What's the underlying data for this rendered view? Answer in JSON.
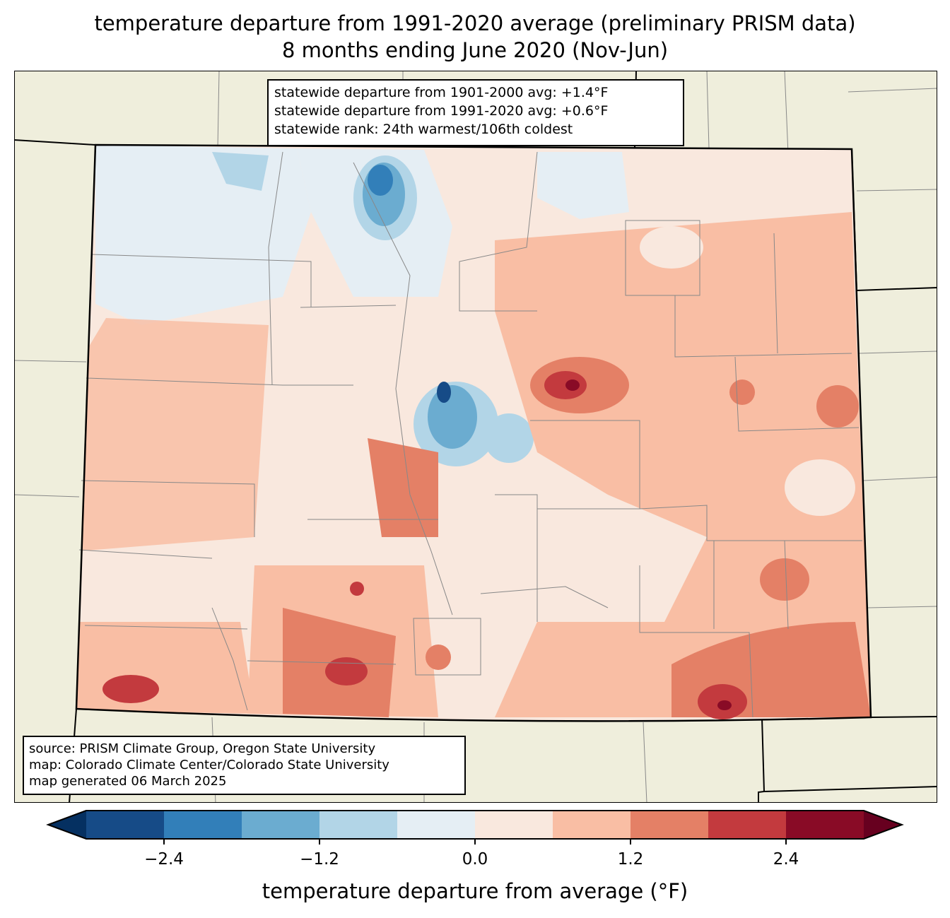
{
  "title": {
    "line1": "temperature departure from 1991-2020 average (preliminary PRISM data)",
    "line2": "8 months ending June 2020 (Nov-Jun)"
  },
  "stats": {
    "line1": "statewide departure from 1901-2000 avg: +1.4°F",
    "line2": "statewide departure from 1991-2020 avg: +0.6°F",
    "line3": "statewide rank: 24th warmest/106th coldest"
  },
  "source": {
    "line1": "source: PRISM Climate Group, Oregon State University",
    "line2": "map: Colorado Climate Center/Colorado State University",
    "line3": "map generated 06 March 2025"
  },
  "colorbar": {
    "label": "temperature departure from average (°F)",
    "ticks": [
      "−2.4",
      "−1.2",
      "0.0",
      "1.2",
      "2.4"
    ],
    "bounds": [
      -3.0,
      -2.4,
      -1.8,
      -1.2,
      -0.6,
      0.0,
      0.6,
      1.2,
      1.8,
      2.4,
      3.0
    ],
    "under_color": "#053061",
    "over_color": "#67001f",
    "colors": [
      "#164b87",
      "#327fb9",
      "#6bacd0",
      "#b2d5e7",
      "#e5eef4",
      "#f9e8de",
      "#f9bea4",
      "#e48066",
      "#c33a3e",
      "#890b26"
    ]
  },
  "map_colors": {
    "land": "#efeedc",
    "border": "#000000",
    "county": "#808080"
  }
}
